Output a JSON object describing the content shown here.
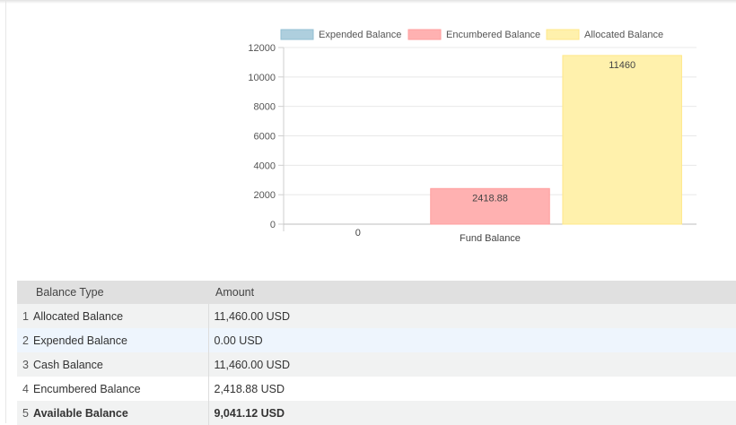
{
  "chart_data": {
    "type": "bar",
    "xlabel": "Fund Balance",
    "categories": [
      "Fund Balance"
    ],
    "series": [
      {
        "name": "Expended Balance",
        "values": [
          0
        ],
        "label": "0",
        "fill": "#aecfde",
        "stroke": "#93bfd3"
      },
      {
        "name": "Encumbered Balance",
        "values": [
          2418.88
        ],
        "label": "2418.88",
        "fill": "#ffb1b1",
        "stroke": "#ff9e9e"
      },
      {
        "name": "Allocated Balance",
        "values": [
          11460
        ],
        "label": "11460",
        "fill": "#fff1ac",
        "stroke": "#ffe88a"
      }
    ],
    "ylim": [
      0,
      12000
    ],
    "yticks": [
      0,
      2000,
      4000,
      6000,
      8000,
      10000,
      12000
    ],
    "grid": true,
    "legend": "top"
  },
  "table": {
    "headers": [
      "Balance Type",
      "Amount"
    ],
    "rows": [
      {
        "index": "1",
        "type": "Allocated Balance",
        "amount": "11,460.00 USD"
      },
      {
        "index": "2",
        "type": "Expended Balance",
        "amount": "0.00 USD"
      },
      {
        "index": "3",
        "type": "Cash Balance",
        "amount": "11,460.00 USD"
      },
      {
        "index": "4",
        "type": "Encumbered Balance",
        "amount": "2,418.88 USD"
      },
      {
        "index": "5",
        "type": "Available Balance",
        "amount": "9,041.12 USD"
      }
    ]
  }
}
